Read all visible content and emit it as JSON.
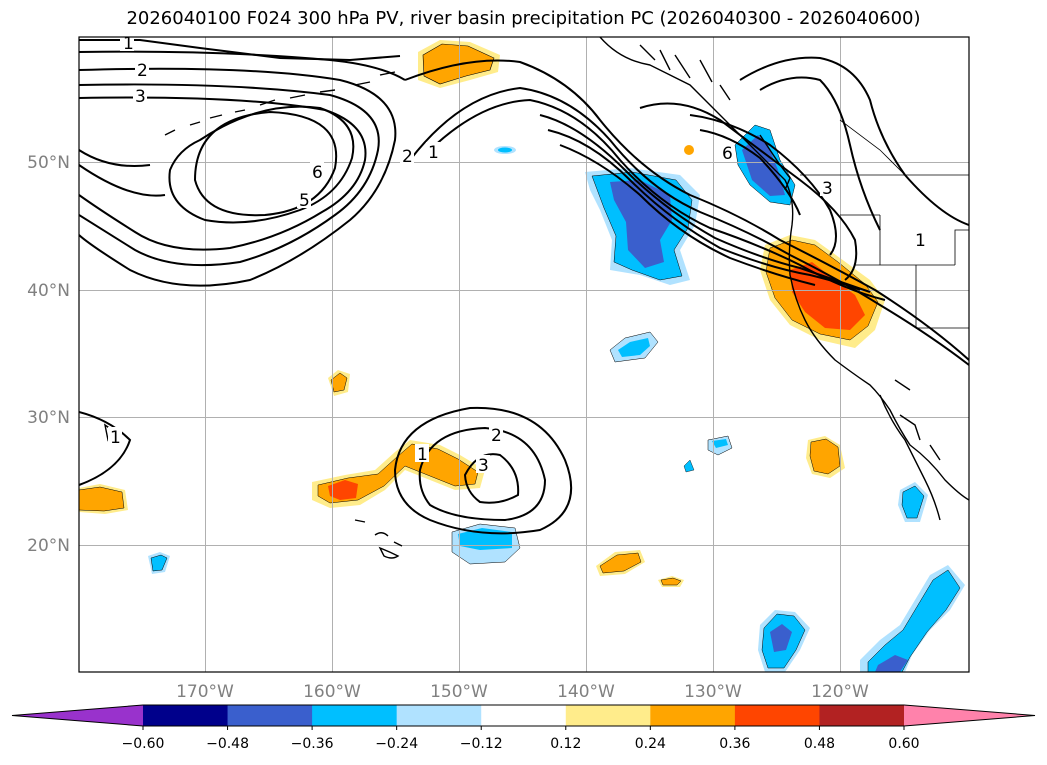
{
  "title": "2026040100 F024 300 hPa PV, river basin precipitation PC (2026040300 - 2026040600)",
  "axes": {
    "lon_labels": [
      "170°W",
      "160°W",
      "150°W",
      "140°W",
      "130°W",
      "120°W"
    ],
    "lat_labels": [
      "50°N",
      "40°N",
      "30°N",
      "20°N"
    ]
  },
  "colorbar": {
    "ticks": [
      "−0.60",
      "−0.48",
      "−0.36",
      "−0.24",
      "−0.12",
      "0.12",
      "0.24",
      "0.36",
      "0.48",
      "0.60"
    ],
    "colors": [
      "#9932cc",
      "#00008b",
      "#3a5fcd",
      "#00bfff",
      "#b0e2ff",
      "#ffffff",
      "#ffec8b",
      "#ffa500",
      "#ff4500",
      "#b22222",
      "#ff82ab"
    ]
  },
  "contour_labels": [
    "1",
    "2",
    "3",
    "6",
    "5",
    "2",
    "1",
    "6",
    "3",
    "1",
    "2",
    "3",
    "1",
    "1"
  ],
  "colors": {
    "orange": "#ffa500",
    "light_yellow": "#ffec8b",
    "red_orange": "#ff4500",
    "deep_sky_blue": "#00bfff",
    "light_blue": "#b0e2ff",
    "royal_blue": "#3a5fcd",
    "grid": "#b0b0b0"
  }
}
